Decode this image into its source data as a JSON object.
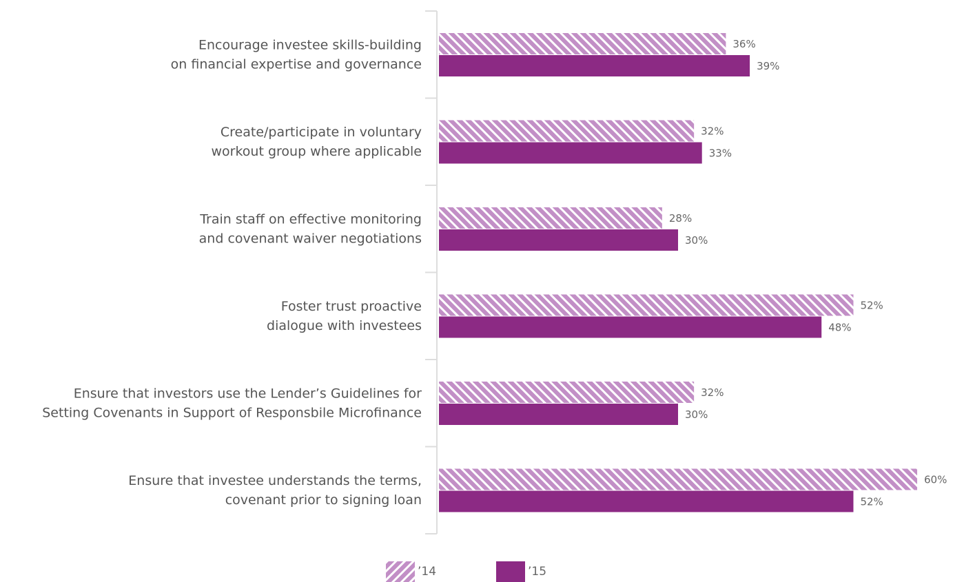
{
  "chart_data": {
    "type": "bar",
    "orientation": "horizontal",
    "categories": [
      "Encourage investee skills-building\non financial expertise and governance",
      "Create/participate in voluntary\nworkout group where applicable",
      "Train staff on effective monitoring\nand covenant waiver negotiations",
      "Foster trust proactive\ndialogue with investees",
      "Ensure that investors use the Lender’s Guidelines for\nSetting Covenants in Support of Responsbile Microfinance",
      "Ensure that investee understands the terms,\ncovenant prior to signing loan"
    ],
    "series": [
      {
        "name": "’14",
        "color": "#c28fc6",
        "pattern": "hatch",
        "values": [
          36,
          32,
          28,
          52,
          32,
          60
        ],
        "value_labels": [
          "36%",
          "32%",
          "28%",
          "52%",
          "32%",
          "60%"
        ]
      },
      {
        "name": "’15",
        "color": "#8c2a84",
        "pattern": "solid",
        "values": [
          39,
          33,
          30,
          48,
          30,
          52
        ],
        "value_labels": [
          "39%",
          "33%",
          "30%",
          "48%",
          "30%",
          "52%"
        ]
      }
    ],
    "xlim": [
      0,
      60
    ],
    "legend": "bottom"
  }
}
